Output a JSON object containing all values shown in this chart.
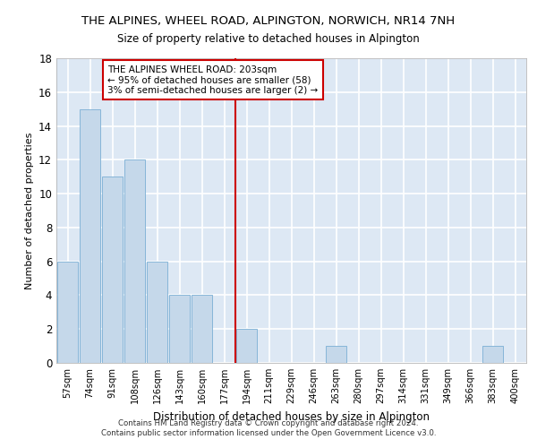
{
  "title": "THE ALPINES, WHEEL ROAD, ALPINGTON, NORWICH, NR14 7NH",
  "subtitle": "Size of property relative to detached houses in Alpington",
  "xlabel": "Distribution of detached houses by size in Alpington",
  "ylabel": "Number of detached properties",
  "bar_labels": [
    "57sqm",
    "74sqm",
    "91sqm",
    "108sqm",
    "126sqm",
    "143sqm",
    "160sqm",
    "177sqm",
    "194sqm",
    "211sqm",
    "229sqm",
    "246sqm",
    "263sqm",
    "280sqm",
    "297sqm",
    "314sqm",
    "331sqm",
    "349sqm",
    "366sqm",
    "383sqm",
    "400sqm"
  ],
  "bar_values": [
    6,
    15,
    11,
    12,
    6,
    4,
    4,
    0,
    2,
    0,
    0,
    0,
    1,
    0,
    0,
    0,
    0,
    0,
    0,
    1,
    0
  ],
  "bar_color": "#c5d8ea",
  "bar_edge_color": "#7bafd4",
  "background_color": "#dde8f4",
  "grid_color": "#ffffff",
  "redline_index": 8,
  "redline_color": "#cc0000",
  "annotation_text": "THE ALPINES WHEEL ROAD: 203sqm\n← 95% of detached houses are smaller (58)\n3% of semi-detached houses are larger (2) →",
  "annotation_box_color": "#ffffff",
  "annotation_edge_color": "#cc0000",
  "ylim": [
    0,
    18
  ],
  "yticks": [
    0,
    2,
    4,
    6,
    8,
    10,
    12,
    14,
    16,
    18
  ],
  "footer_line1": "Contains HM Land Registry data © Crown copyright and database right 2024.",
  "footer_line2": "Contains public sector information licensed under the Open Government Licence v3.0."
}
